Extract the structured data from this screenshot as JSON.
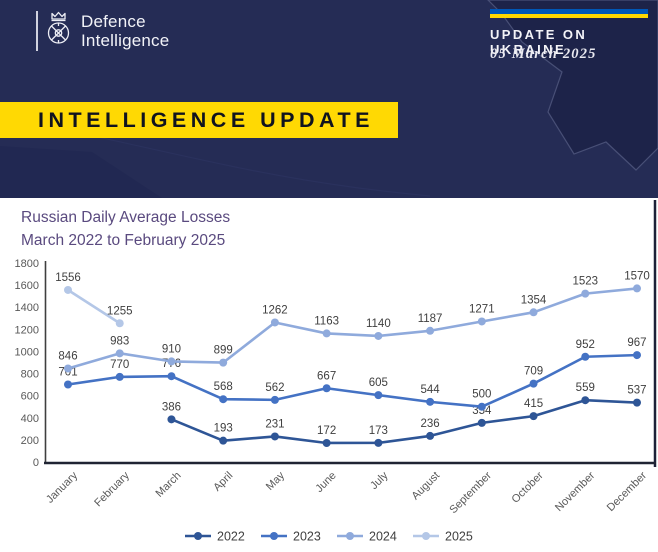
{
  "header": {
    "logo_line1": "Defence",
    "logo_line2": "Intelligence",
    "update_label": "UPDATE ON UKRAINE",
    "date": "05 March 2025",
    "banner": "INTELLIGENCE UPDATE",
    "colors": {
      "background": "#252c55",
      "banner_bg": "#ffd903",
      "banner_text": "#10131f",
      "flag_blue": "#0057b7",
      "flag_yellow": "#ffd700"
    }
  },
  "chart": {
    "title_line1": "Russian Daily Average Losses",
    "title_line2": "March 2022 to February 2025",
    "title_color": "#5a4a7f"
  },
  "chart_data": {
    "type": "line",
    "title": "Russian Daily Average Losses March 2022 to February 2025",
    "categories": [
      "January",
      "February",
      "March",
      "April",
      "May",
      "June",
      "July",
      "August",
      "September",
      "October",
      "November",
      "December"
    ],
    "series": [
      {
        "name": "2022",
        "color": "#2e5596",
        "values": [
          null,
          null,
          386,
          193,
          231,
          172,
          173,
          236,
          354,
          415,
          559,
          537
        ]
      },
      {
        "name": "2023",
        "color": "#4472c4",
        "values": [
          701,
          770,
          776,
          568,
          562,
          667,
          605,
          544,
          500,
          709,
          952,
          967
        ]
      },
      {
        "name": "2024",
        "color": "#8faadc",
        "values": [
          846,
          983,
          910,
          899,
          1262,
          1163,
          1140,
          1187,
          1271,
          1354,
          1523,
          1570
        ]
      },
      {
        "name": "2025",
        "color": "#b4c7e7",
        "values": [
          1556,
          1255,
          null,
          null,
          null,
          null,
          null,
          null,
          null,
          null,
          null,
          null
        ]
      }
    ],
    "ylim": [
      0,
      1800
    ],
    "ytick_step": 200,
    "xlabel": "",
    "ylabel": "",
    "grid": false,
    "legend_position": "bottom",
    "data_labels": true
  }
}
